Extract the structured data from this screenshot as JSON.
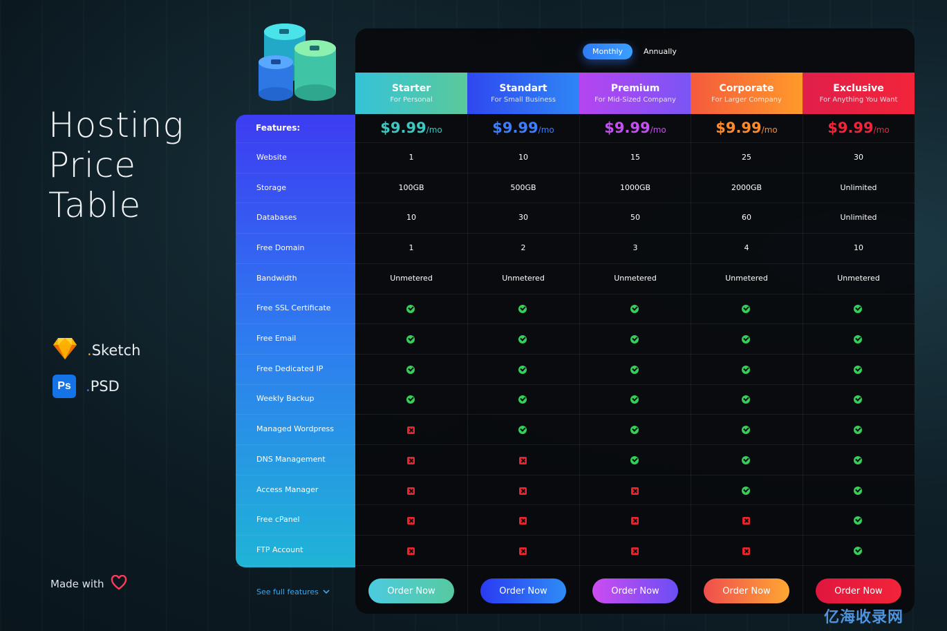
{
  "hero": {
    "title": "Hosting\nPrice\nTable"
  },
  "tools": [
    {
      "icon": "sketch-icon",
      "dot": ".",
      "label": "Sketch"
    },
    {
      "icon": "ps-icon",
      "icon_text": "Ps",
      "dot": ".",
      "label": "PSD"
    }
  ],
  "made_with": {
    "label": "Made with",
    "icon": "heart-icon"
  },
  "billing_toggle": {
    "options": [
      "Monthly",
      "Annually"
    ],
    "selected": "Monthly"
  },
  "plans": [
    {
      "name": "Starter",
      "subtitle": "For Personal",
      "price": "$9.99",
      "per": "/mo",
      "color": "#3cc7c0",
      "header_gradient": [
        "#35c3d8",
        "#5bc99a"
      ],
      "button_gradient": [
        "#4ccbe0",
        "#57c9a0"
      ]
    },
    {
      "name": "Standart",
      "subtitle": "For Small Business",
      "price": "$9.99",
      "per": "/mo",
      "color": "#3d7dff",
      "header_gradient": [
        "#2f48f0",
        "#2f86f5"
      ],
      "button_gradient": [
        "#2b3af2",
        "#2e8cf5"
      ]
    },
    {
      "name": "Premium",
      "subtitle": "For Mid-Sized Company",
      "price": "$9.99",
      "per": "/mo",
      "color": "#c54ff2",
      "header_gradient": [
        "#b545f0",
        "#7b55f5"
      ],
      "button_gradient": [
        "#cc4cf0",
        "#6a4ef5"
      ]
    },
    {
      "name": "Corporate",
      "subtitle": "For Larger Company",
      "price": "$9.99",
      "per": "/mo",
      "color": "#ff8a2a",
      "header_gradient": [
        "#f55a3c",
        "#ff9a2a"
      ],
      "button_gradient": [
        "#ef4e4e",
        "#ffa733"
      ]
    },
    {
      "name": "Exclusive",
      "subtitle": "For Anything You Want",
      "price": "$9.99",
      "per": "/mo",
      "color": "#f2243a",
      "header_gradient": [
        "#e01f4a",
        "#f2243a"
      ],
      "button_gradient": [
        "#e0163e",
        "#f2243a"
      ]
    }
  ],
  "features_header": "Features:",
  "features": [
    {
      "label": "Website",
      "values": [
        "1",
        "10",
        "15",
        "25",
        "30"
      ]
    },
    {
      "label": "Storage",
      "values": [
        "100GB",
        "500GB",
        "1000GB",
        "2000GB",
        "Unlimited"
      ]
    },
    {
      "label": "Databases",
      "values": [
        "10",
        "30",
        "50",
        "60",
        "Unlimited"
      ]
    },
    {
      "label": "Free Domain",
      "values": [
        "1",
        "2",
        "3",
        "4",
        "10"
      ]
    },
    {
      "label": "Bandwidth",
      "values": [
        "Unmetered",
        "Unmetered",
        "Unmetered",
        "Unmetered",
        "Unmetered"
      ]
    },
    {
      "label": "Free SSL Certificate",
      "values": [
        true,
        true,
        true,
        true,
        true
      ]
    },
    {
      "label": "Free Email",
      "values": [
        true,
        true,
        true,
        true,
        true
      ]
    },
    {
      "label": "Free Dedicated IP",
      "values": [
        true,
        true,
        true,
        true,
        true
      ]
    },
    {
      "label": "Weekly Backup",
      "values": [
        true,
        true,
        true,
        true,
        true
      ]
    },
    {
      "label": "Managed Wordpress",
      "values": [
        false,
        true,
        true,
        true,
        true
      ]
    },
    {
      "label": "DNS Management",
      "values": [
        false,
        false,
        true,
        true,
        true
      ]
    },
    {
      "label": "Access Manager",
      "values": [
        false,
        false,
        false,
        true,
        true
      ]
    },
    {
      "label": "Free cPanel",
      "values": [
        false,
        false,
        false,
        false,
        true
      ]
    },
    {
      "label": "FTP Account",
      "values": [
        false,
        false,
        false,
        false,
        true
      ]
    }
  ],
  "see_full_features": "See full features",
  "order_button_label": "Order Now",
  "watermark": "亿海收录网"
}
